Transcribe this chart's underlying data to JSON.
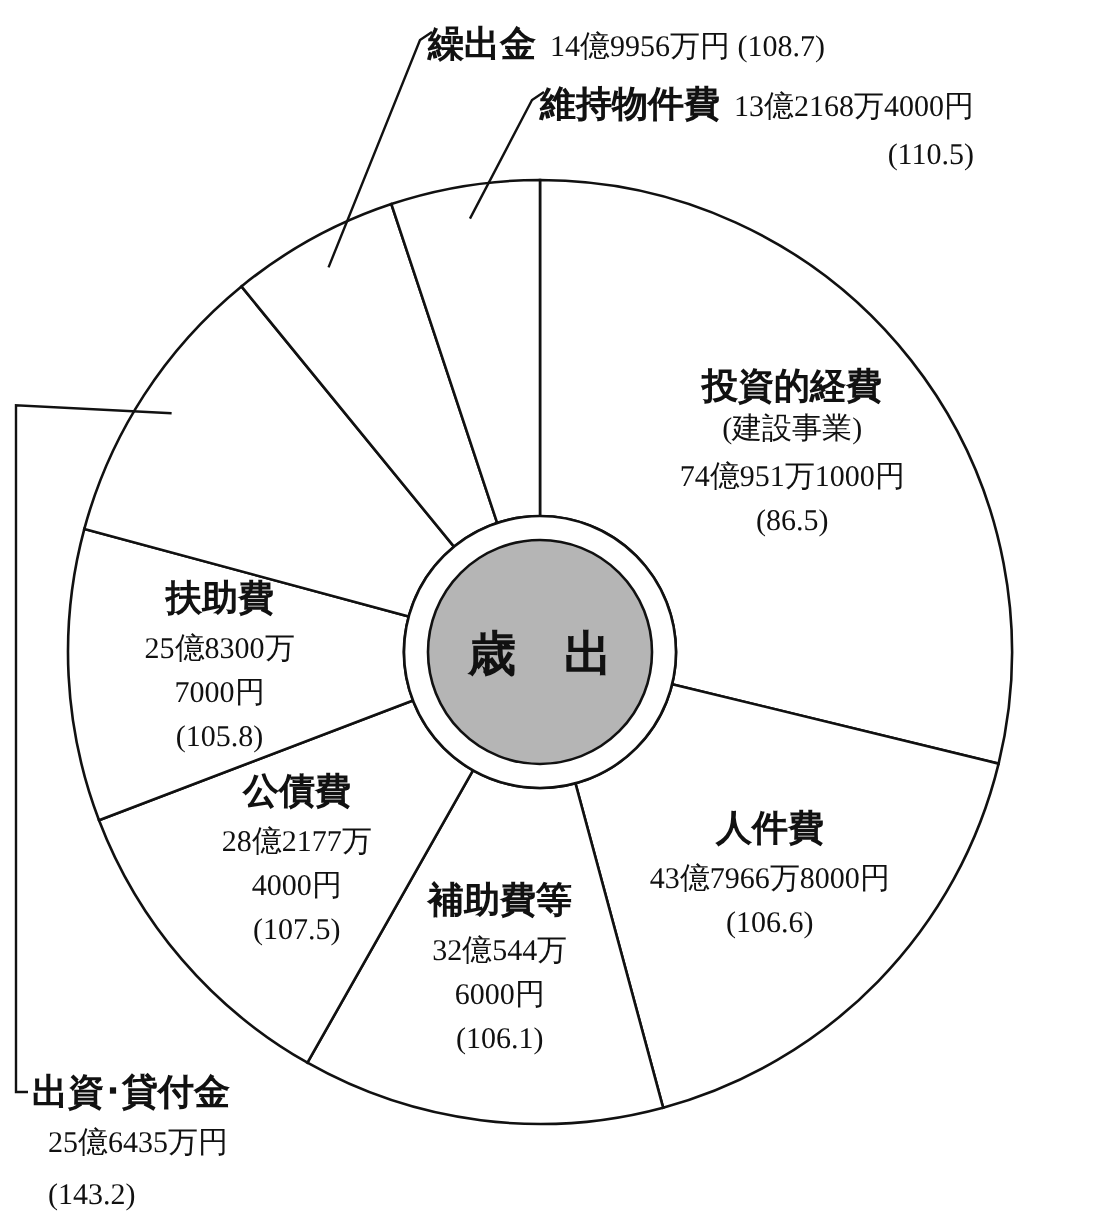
{
  "chart_data": {
    "type": "donut",
    "title": "歳　出",
    "categories": [
      "投資的経費\n(建設事業)",
      "人件費",
      "補助費等",
      "公債費",
      "扶助費",
      "出資･貸付金",
      "繰出金",
      "維持物件費"
    ],
    "values": [
      28.8,
      17.0,
      12.4,
      11.0,
      10.0,
      9.9,
      5.8,
      5.1
    ],
    "annotations": [
      "74億951万1000円\n(86.5)",
      "43億7966万8000円\n(106.6)",
      "32億544万\n6000円\n(106.1)",
      "28億2177万\n4000円\n(107.5)",
      "25億8300万\n7000円\n(105.8)",
      "25億6435万円\n(143.2)",
      "14億9956万円 (108.7)",
      "13億2168万4000円\n(110.5)"
    ],
    "colors": [
      "#ffffff",
      "#ffffff",
      "#ffffff",
      "#ffffff",
      "#ffffff",
      "#ffffff",
      "#ffffff",
      "#ffffff"
    ]
  }
}
